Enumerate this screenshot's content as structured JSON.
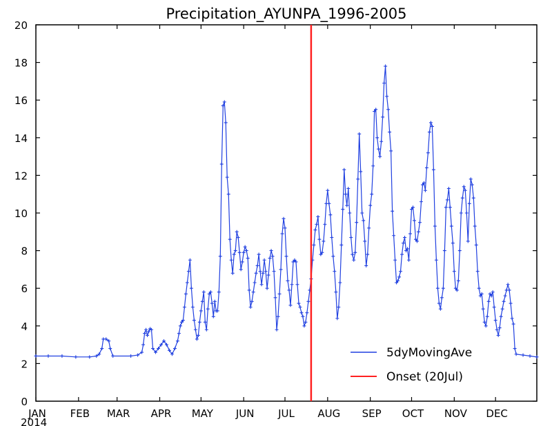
{
  "chart_data": {
    "type": "line",
    "title": "Precipitation_AYUNPA_1996-2005",
    "xlabel": "",
    "ylabel": "",
    "x_ticks": [
      "JAN",
      "FEB",
      "MAR",
      "APR",
      "MAY",
      "JUN",
      "JUL",
      "AUG",
      "SEP",
      "OCT",
      "NOV",
      "DEC"
    ],
    "year_label": "2014",
    "ylim": [
      0,
      20
    ],
    "y_ticks": [
      "0",
      "2",
      "4",
      "6",
      "8",
      "10",
      "12",
      "14",
      "16",
      "18",
      "20"
    ],
    "grid": false,
    "legend_position": "bottom-right",
    "series": [
      {
        "name": "5dyMovingAve",
        "color": "#1f3fe0",
        "points": [
          [
            1,
            2.4
          ],
          [
            10,
            2.4
          ],
          [
            20,
            2.4
          ],
          [
            30,
            2.35
          ],
          [
            40,
            2.35
          ],
          [
            45,
            2.4
          ],
          [
            47,
            2.5
          ],
          [
            49,
            2.8
          ],
          [
            50,
            3.3
          ],
          [
            52,
            3.3
          ],
          [
            54,
            3.2
          ],
          [
            55,
            2.8
          ],
          [
            57,
            2.4
          ],
          [
            70,
            2.4
          ],
          [
            75,
            2.45
          ],
          [
            78,
            2.6
          ],
          [
            79,
            3.0
          ],
          [
            80,
            3.6
          ],
          [
            81,
            3.8
          ],
          [
            82,
            3.5
          ],
          [
            83,
            3.7
          ],
          [
            84,
            3.85
          ],
          [
            85,
            3.8
          ],
          [
            86,
            2.8
          ],
          [
            88,
            2.6
          ],
          [
            90,
            2.8
          ],
          [
            92,
            3.0
          ],
          [
            94,
            3.2
          ],
          [
            96,
            3.0
          ],
          [
            98,
            2.7
          ],
          [
            100,
            2.5
          ],
          [
            102,
            2.8
          ],
          [
            104,
            3.2
          ],
          [
            105,
            3.6
          ],
          [
            106,
            4.0
          ],
          [
            107,
            4.2
          ],
          [
            108,
            4.3
          ],
          [
            109,
            5.0
          ],
          [
            110,
            5.7
          ],
          [
            111,
            6.3
          ],
          [
            112,
            6.9
          ],
          [
            113,
            7.5
          ],
          [
            114,
            6.0
          ],
          [
            115,
            5.0
          ],
          [
            116,
            4.3
          ],
          [
            117,
            3.8
          ],
          [
            118,
            3.3
          ],
          [
            119,
            3.5
          ],
          [
            120,
            4.2
          ],
          [
            121,
            4.8
          ],
          [
            122,
            5.3
          ],
          [
            123,
            5.8
          ],
          [
            124,
            4.2
          ],
          [
            125,
            3.8
          ],
          [
            126,
            4.9
          ],
          [
            127,
            5.7
          ],
          [
            128,
            5.8
          ],
          [
            129,
            5.2
          ],
          [
            130,
            4.5
          ],
          [
            131,
            5.3
          ],
          [
            132,
            4.8
          ],
          [
            133,
            4.8
          ],
          [
            134,
            5.8
          ],
          [
            135,
            7.7
          ],
          [
            136,
            12.6
          ],
          [
            137,
            15.7
          ],
          [
            138,
            15.9
          ],
          [
            139,
            14.8
          ],
          [
            140,
            11.9
          ],
          [
            141,
            11.0
          ],
          [
            142,
            8.6
          ],
          [
            143,
            7.5
          ],
          [
            144,
            6.8
          ],
          [
            145,
            7.8
          ],
          [
            146,
            8.0
          ],
          [
            147,
            9.0
          ],
          [
            148,
            8.7
          ],
          [
            149,
            7.9
          ],
          [
            150,
            7.0
          ],
          [
            151,
            7.4
          ],
          [
            152,
            7.9
          ],
          [
            153,
            8.2
          ],
          [
            154,
            8.0
          ],
          [
            155,
            7.6
          ],
          [
            156,
            5.9
          ],
          [
            157,
            5.0
          ],
          [
            158,
            5.3
          ],
          [
            159,
            5.8
          ],
          [
            160,
            6.3
          ],
          [
            161,
            6.8
          ],
          [
            162,
            7.2
          ],
          [
            163,
            7.8
          ],
          [
            164,
            6.9
          ],
          [
            165,
            6.2
          ],
          [
            166,
            6.8
          ],
          [
            167,
            7.5
          ],
          [
            168,
            6.9
          ],
          [
            169,
            6.0
          ],
          [
            170,
            6.7
          ],
          [
            171,
            7.6
          ],
          [
            172,
            8.0
          ],
          [
            173,
            7.7
          ],
          [
            174,
            6.9
          ],
          [
            175,
            5.5
          ],
          [
            176,
            3.8
          ],
          [
            177,
            4.5
          ],
          [
            178,
            5.7
          ],
          [
            179,
            7.0
          ],
          [
            180,
            8.9
          ],
          [
            181,
            9.7
          ],
          [
            182,
            9.2
          ],
          [
            183,
            7.7
          ],
          [
            184,
            6.4
          ],
          [
            185,
            5.9
          ],
          [
            186,
            5.1
          ],
          [
            187,
            6.2
          ],
          [
            188,
            7.4
          ],
          [
            189,
            7.5
          ],
          [
            190,
            7.4
          ],
          [
            191,
            6.2
          ],
          [
            192,
            5.2
          ],
          [
            193,
            5.0
          ],
          [
            194,
            4.7
          ],
          [
            195,
            4.5
          ],
          [
            196,
            4.0
          ],
          [
            197,
            4.2
          ],
          [
            198,
            4.7
          ],
          [
            199,
            5.3
          ],
          [
            200,
            5.9
          ],
          [
            201,
            6.5
          ],
          [
            202,
            7.5
          ],
          [
            203,
            8.3
          ],
          [
            204,
            9.1
          ],
          [
            205,
            9.4
          ],
          [
            206,
            9.8
          ],
          [
            207,
            8.6
          ],
          [
            208,
            7.8
          ],
          [
            209,
            7.9
          ],
          [
            210,
            8.5
          ],
          [
            211,
            9.4
          ],
          [
            212,
            10.5
          ],
          [
            213,
            11.2
          ],
          [
            214,
            10.5
          ],
          [
            215,
            9.9
          ],
          [
            216,
            8.7
          ],
          [
            217,
            7.7
          ],
          [
            218,
            6.9
          ],
          [
            219,
            5.8
          ],
          [
            220,
            4.4
          ],
          [
            221,
            5.0
          ],
          [
            222,
            6.3
          ],
          [
            223,
            8.3
          ],
          [
            224,
            10.2
          ],
          [
            225,
            12.3
          ],
          [
            226,
            11.0
          ],
          [
            227,
            10.4
          ],
          [
            228,
            11.3
          ],
          [
            229,
            10.0
          ],
          [
            230,
            8.7
          ],
          [
            231,
            7.8
          ],
          [
            232,
            7.5
          ],
          [
            233,
            7.9
          ],
          [
            234,
            9.5
          ],
          [
            235,
            11.8
          ],
          [
            236,
            14.2
          ],
          [
            237,
            12.2
          ],
          [
            238,
            10.0
          ],
          [
            239,
            9.6
          ],
          [
            240,
            8.5
          ],
          [
            241,
            7.2
          ],
          [
            242,
            7.8
          ],
          [
            243,
            9.2
          ],
          [
            244,
            10.4
          ],
          [
            245,
            11.0
          ],
          [
            246,
            12.5
          ],
          [
            247,
            15.4
          ],
          [
            248,
            15.5
          ],
          [
            249,
            14.0
          ],
          [
            250,
            13.4
          ],
          [
            251,
            13.0
          ],
          [
            252,
            13.8
          ],
          [
            253,
            15.1
          ],
          [
            254,
            16.9
          ],
          [
            255,
            17.8
          ],
          [
            256,
            16.2
          ],
          [
            257,
            15.5
          ],
          [
            258,
            14.3
          ],
          [
            259,
            13.3
          ],
          [
            260,
            10.1
          ],
          [
            261,
            8.8
          ],
          [
            262,
            7.5
          ],
          [
            263,
            6.3
          ],
          [
            264,
            6.4
          ],
          [
            265,
            6.6
          ],
          [
            266,
            6.9
          ],
          [
            267,
            7.8
          ],
          [
            268,
            8.4
          ],
          [
            269,
            8.7
          ],
          [
            270,
            8.0
          ],
          [
            271,
            8.1
          ],
          [
            272,
            7.5
          ],
          [
            273,
            8.9
          ],
          [
            274,
            10.2
          ],
          [
            275,
            10.3
          ],
          [
            276,
            9.6
          ],
          [
            277,
            8.6
          ],
          [
            278,
            8.5
          ],
          [
            279,
            9.0
          ],
          [
            280,
            9.5
          ],
          [
            281,
            10.6
          ],
          [
            282,
            11.5
          ],
          [
            283,
            11.6
          ],
          [
            284,
            11.2
          ],
          [
            285,
            12.4
          ],
          [
            286,
            13.2
          ],
          [
            287,
            14.3
          ],
          [
            288,
            14.8
          ],
          [
            289,
            14.6
          ],
          [
            290,
            12.3
          ],
          [
            291,
            9.3
          ],
          [
            292,
            7.5
          ],
          [
            293,
            6.0
          ],
          [
            294,
            5.2
          ],
          [
            295,
            4.9
          ],
          [
            296,
            5.5
          ],
          [
            297,
            6.0
          ],
          [
            298,
            8.0
          ],
          [
            299,
            10.3
          ],
          [
            300,
            10.7
          ],
          [
            301,
            11.3
          ],
          [
            302,
            10.3
          ],
          [
            303,
            9.3
          ],
          [
            304,
            8.4
          ],
          [
            305,
            6.9
          ],
          [
            306,
            6.0
          ],
          [
            307,
            5.9
          ],
          [
            308,
            6.4
          ],
          [
            309,
            8.0
          ],
          [
            310,
            10.0
          ],
          [
            311,
            10.8
          ],
          [
            312,
            11.4
          ],
          [
            313,
            11.2
          ],
          [
            314,
            10.0
          ],
          [
            315,
            8.5
          ],
          [
            316,
            10.5
          ],
          [
            317,
            11.8
          ],
          [
            318,
            11.5
          ],
          [
            319,
            10.8
          ],
          [
            320,
            9.3
          ],
          [
            321,
            8.3
          ],
          [
            322,
            6.9
          ],
          [
            323,
            6.0
          ],
          [
            324,
            5.6
          ],
          [
            325,
            5.7
          ],
          [
            326,
            4.9
          ],
          [
            327,
            4.2
          ],
          [
            328,
            4.0
          ],
          [
            329,
            4.5
          ],
          [
            330,
            5.3
          ],
          [
            331,
            5.7
          ],
          [
            332,
            5.6
          ],
          [
            333,
            5.8
          ],
          [
            334,
            5.0
          ],
          [
            335,
            4.3
          ],
          [
            336,
            3.8
          ],
          [
            337,
            3.5
          ],
          [
            338,
            3.9
          ],
          [
            339,
            4.5
          ],
          [
            340,
            4.9
          ],
          [
            341,
            5.3
          ],
          [
            342,
            5.6
          ],
          [
            343,
            5.9
          ],
          [
            344,
            6.2
          ],
          [
            345,
            5.9
          ],
          [
            346,
            5.2
          ],
          [
            347,
            4.4
          ],
          [
            348,
            4.1
          ],
          [
            349,
            2.8
          ],
          [
            350,
            2.5
          ],
          [
            355,
            2.45
          ],
          [
            360,
            2.4
          ],
          [
            365,
            2.35
          ]
        ]
      },
      {
        "name": "Onset (20Jul)",
        "color": "#ff2020",
        "x": 201
      }
    ]
  }
}
